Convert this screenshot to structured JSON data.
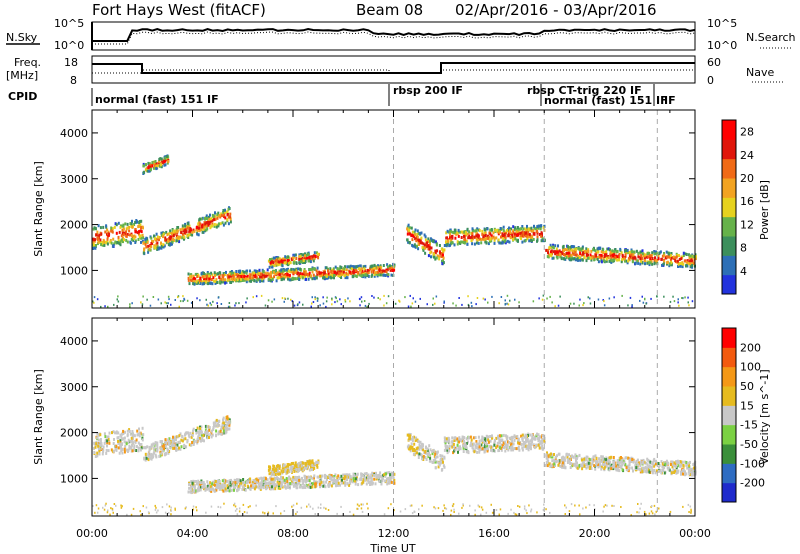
{
  "header": {
    "station": "Fort Hays West (fitACF)",
    "beam": "Beam 08",
    "date_range": "02/Apr/2016 - 03/Apr/2016"
  },
  "top_panels": {
    "nsky_label": "N.Sky",
    "nsearch_label": "N.Search",
    "log_top_label": "10^5",
    "log_bottom_label": "10^0",
    "freq_label_1": "Freq.",
    "freq_label_2": "[MHz]",
    "freq_ticks": [
      "18",
      "8"
    ],
    "nave_label": "Nave",
    "nave_ticks": [
      "60",
      "0"
    ],
    "cpid_label": "CPID",
    "cpid_modes": [
      {
        "label": "normal (fast) 151 IF",
        "start_hour": 0
      },
      {
        "label": "rbsp 200 IF",
        "start_hour": 12
      },
      {
        "label": "rbsp CT-trig 220 IF",
        "start_hour": 18
      },
      {
        "label": "normal (fast) 151 IF",
        "start_hour": 18
      },
      {
        "label": "IF",
        "start_hour": 22.5
      }
    ]
  },
  "colors": {
    "power": [
      "#2233dd",
      "#2d6fb6",
      "#3c8f5c",
      "#66b24a",
      "#e6d21e",
      "#f2a321",
      "#f06a16",
      "#e0160b",
      "#ff0000"
    ],
    "velocity": [
      "#1f2bcc",
      "#2e6cc2",
      "#3a8f3a",
      "#7bd143",
      "#c8c8c8",
      "#e6bb1f",
      "#f49816",
      "#f35a0e",
      "#ff0000"
    ],
    "gridline": "#aaaaaa"
  },
  "chart_data": [
    {
      "type": "heatmap",
      "name": "power",
      "ylabel": "Slant Range [km]",
      "xlabel": "",
      "xlim": [
        0,
        24
      ],
      "ylim": [
        180,
        4500
      ],
      "xticks": [
        "00:00",
        "04:00",
        "08:00",
        "12:00",
        "16:00",
        "20:00",
        "00:00"
      ],
      "yticks": [
        1000,
        2000,
        3000,
        4000
      ],
      "colorbar": {
        "label": "Power [dB]",
        "ticks": [
          4,
          8,
          12,
          16,
          20,
          24,
          28
        ],
        "range": [
          0,
          30
        ]
      },
      "mode_lines_hour": [
        12,
        18,
        22.5
      ],
      "bands": [
        {
          "x": [
            0,
            2
          ],
          "y_center": [
            1700,
            1850
          ],
          "width": 500
        },
        {
          "x": [
            2,
            5.5
          ],
          "y_center": [
            1500,
            2200
          ],
          "width": 350
        },
        {
          "x": [
            2,
            3
          ],
          "y_center": [
            3200,
            3400
          ],
          "width": 200
        },
        {
          "x": [
            3.8,
            12
          ],
          "y_center": [
            800,
            1000
          ],
          "width": 250
        },
        {
          "x": [
            7,
            9
          ],
          "y_center": [
            1150,
            1300
          ],
          "width": 200
        },
        {
          "x": [
            12.5,
            14
          ],
          "y_center": [
            1800,
            1300
          ],
          "width": 400
        },
        {
          "x": [
            14,
            18
          ],
          "y_center": [
            1700,
            1800
          ],
          "width": 350
        },
        {
          "x": [
            18,
            24
          ],
          "y_center": [
            1400,
            1200
          ],
          "width": 300
        }
      ]
    },
    {
      "type": "heatmap",
      "name": "velocity",
      "ylabel": "Slant Range [km]",
      "xlabel": "Time UT",
      "xlim": [
        0,
        24
      ],
      "ylim": [
        180,
        4500
      ],
      "xticks": [
        "00:00",
        "04:00",
        "08:00",
        "12:00",
        "16:00",
        "20:00",
        "00:00"
      ],
      "yticks": [
        1000,
        2000,
        3000,
        4000
      ],
      "colorbar": {
        "label": "Velocity [m s^-1]",
        "ticks": [
          200,
          100,
          50,
          15,
          -15,
          -50,
          -100,
          -200
        ],
        "range": [
          -250,
          250
        ]
      },
      "mode_lines_hour": [
        12,
        18,
        22.5
      ],
      "bands": [
        {
          "x": [
            0,
            2
          ],
          "y_center": [
            1700,
            1850
          ],
          "width": 500
        },
        {
          "x": [
            2,
            5.5
          ],
          "y_center": [
            1500,
            2200
          ],
          "width": 350
        },
        {
          "x": [
            3.8,
            12
          ],
          "y_center": [
            800,
            1000
          ],
          "width": 250
        },
        {
          "x": [
            7,
            9
          ],
          "y_center": [
            1150,
            1300
          ],
          "width": 200
        },
        {
          "x": [
            12.5,
            14
          ],
          "y_center": [
            1800,
            1300
          ],
          "width": 400
        },
        {
          "x": [
            14,
            18
          ],
          "y_center": [
            1700,
            1800
          ],
          "width": 350
        },
        {
          "x": [
            18,
            24
          ],
          "y_center": [
            1400,
            1200
          ],
          "width": 300
        }
      ]
    }
  ]
}
